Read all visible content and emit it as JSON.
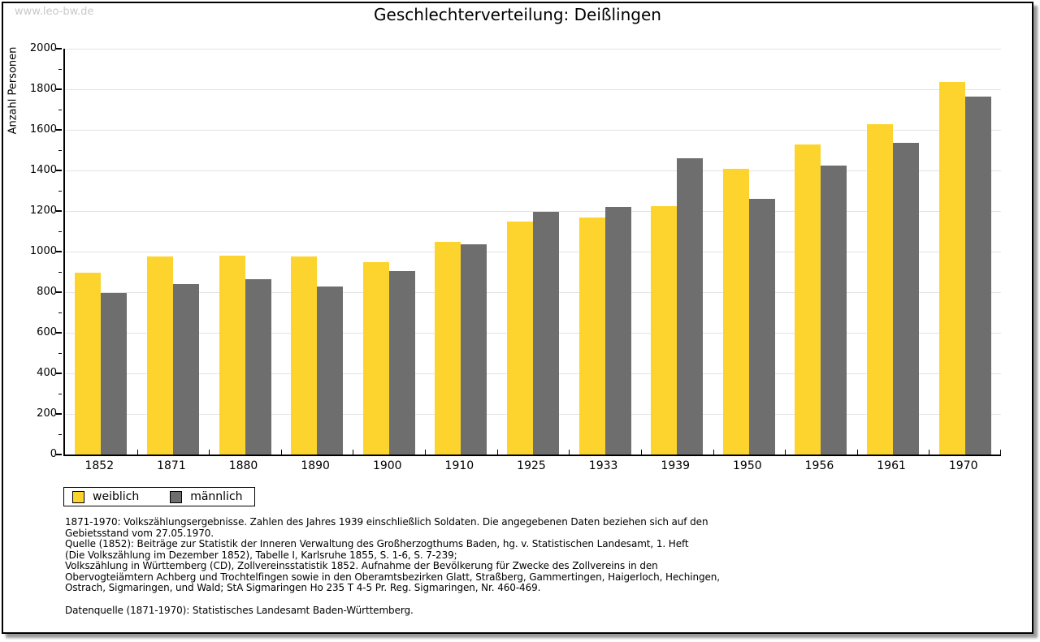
{
  "watermark": "www.leo-bw.de",
  "title": "Geschlechterverteilung: Deißlingen",
  "footnotes": {
    "lines": [
      "1871-1970: Volkszählungsergebnisse. Zahlen des Jahres 1939 einschließlich Soldaten. Die angegebenen Daten beziehen sich auf den",
      "Gebietsstand vom 27.05.1970.",
      "Quelle (1852): Beiträge zur Statistik der Inneren Verwaltung des Großherzogthums Baden, hg. v. Statistischen Landesamt, 1. Heft",
      "(Die Volkszählung im Dezember 1852), Tabelle I, Karlsruhe 1855, S. 1-6, S. 7-239;",
      "Volkszählung in Württemberg (CD), Zollvereinsstatistik 1852. Aufnahme der Bevölkerung für Zwecke des Zollvereins in den",
      "Obervogteiämtern Achberg und Trochtelfingen sowie in den Oberamtsbezirken Glatt, Straßberg, Gammertingen, Haigerloch, Hechingen,",
      "Ostrach, Sigmaringen, und Wald; StA Sigmaringen Ho 235 T 4-5 Pr. Reg. Sigmaringen, Nr. 460-469."
    ],
    "datasource": "Datenquelle (1871-1970): Statistisches Landesamt Baden-Württemberg."
  },
  "chart_data": {
    "type": "bar",
    "title": "Geschlechterverteilung: Deißlingen",
    "xlabel": "",
    "ylabel": "Anzahl Personen",
    "ylim": [
      0,
      2000
    ],
    "ytick_step": 200,
    "ytick_minor_step": 100,
    "grid": true,
    "legend_position": "bottom-left",
    "categories": [
      "1852",
      "1871",
      "1880",
      "1890",
      "1900",
      "1910",
      "1925",
      "1933",
      "1939",
      "1950",
      "1956",
      "1961",
      "1970"
    ],
    "series": [
      {
        "name": "weiblich",
        "color": "#FCD42D",
        "values": [
          895,
          975,
          980,
          975,
          950,
          1050,
          1150,
          1170,
          1225,
          1410,
          1530,
          1630,
          1835
        ]
      },
      {
        "name": "männlich",
        "color": "#6E6E6E",
        "values": [
          795,
          840,
          865,
          830,
          905,
          1035,
          1195,
          1220,
          1460,
          1260,
          1425,
          1535,
          1765
        ]
      }
    ]
  }
}
